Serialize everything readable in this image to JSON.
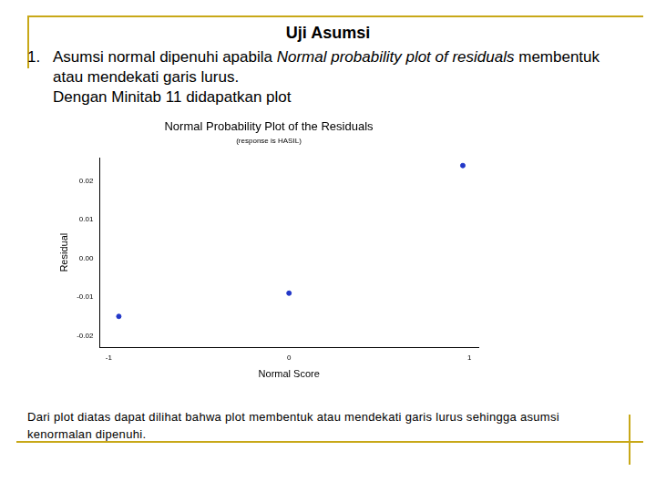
{
  "slide": {
    "heading": "Uji Asumsi",
    "item_number": "1.",
    "item_text": [
      {
        "text": "Asumsi normal dipenuhi apabila "
      },
      {
        "text": "Normal probability plot of residuals",
        "italic": true
      },
      {
        "text": " membentuk atau mendekati garis lurus."
      }
    ],
    "item_line2": "Dengan Minitab 11 didapatkan plot",
    "conclusion": "Dari plot diatas dapat dilihat bahwa plot membentuk atau mendekati garis lurus sehingga asumsi kenormalan dipenuhi."
  },
  "chart_data": {
    "type": "scatter",
    "title": "Normal Probability Plot of the Residuals",
    "subtitle": "(response is HASIL)",
    "x_label": "Normal Score",
    "y_label": "Residual",
    "x": [
      -0.944,
      0,
      0.964
    ],
    "values": [
      -0.015,
      -0.009,
      0.024
    ],
    "color": "#2338c8",
    "marker": "circle",
    "xlim": [
      -1.05,
      1.05
    ],
    "ylim": [
      -0.023,
      0.026
    ],
    "xticks": [
      -1,
      0,
      1
    ],
    "yticks": [
      -0.02,
      -0.01,
      {
        "value": 0,
        "label": "0.00"
      },
      0.01,
      0.02
    ],
    "grid": false
  }
}
